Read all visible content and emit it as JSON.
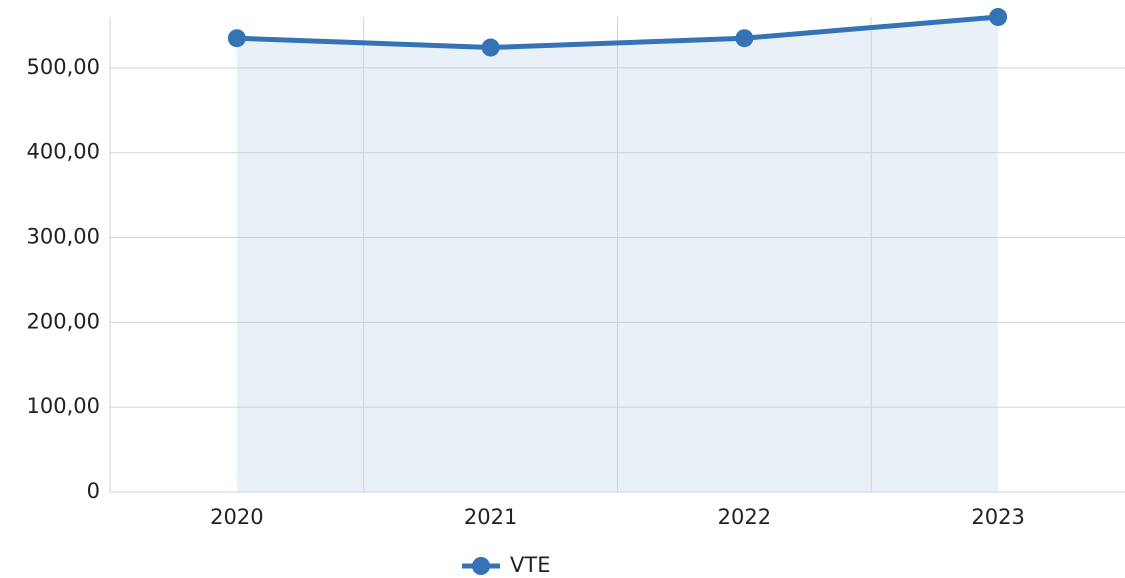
{
  "chart_data": {
    "type": "line",
    "categories": [
      "2020",
      "2021",
      "2022",
      "2023"
    ],
    "series": [
      {
        "name": "VTE",
        "color": "#3473b5",
        "values": [
          535,
          524,
          535,
          560
        ]
      }
    ],
    "area_color": "#eaf0f8",
    "ylim": [
      0,
      560
    ],
    "yticks": [
      0,
      {
        "value": 100,
        "label": "100,00"
      },
      {
        "value": 200,
        "label": "200,00"
      },
      {
        "value": 300,
        "label": "300,00"
      },
      {
        "value": 400,
        "label": "400,00"
      },
      {
        "value": 500,
        "label": "500,00"
      }
    ],
    "grid": true,
    "legend": "bottom"
  }
}
